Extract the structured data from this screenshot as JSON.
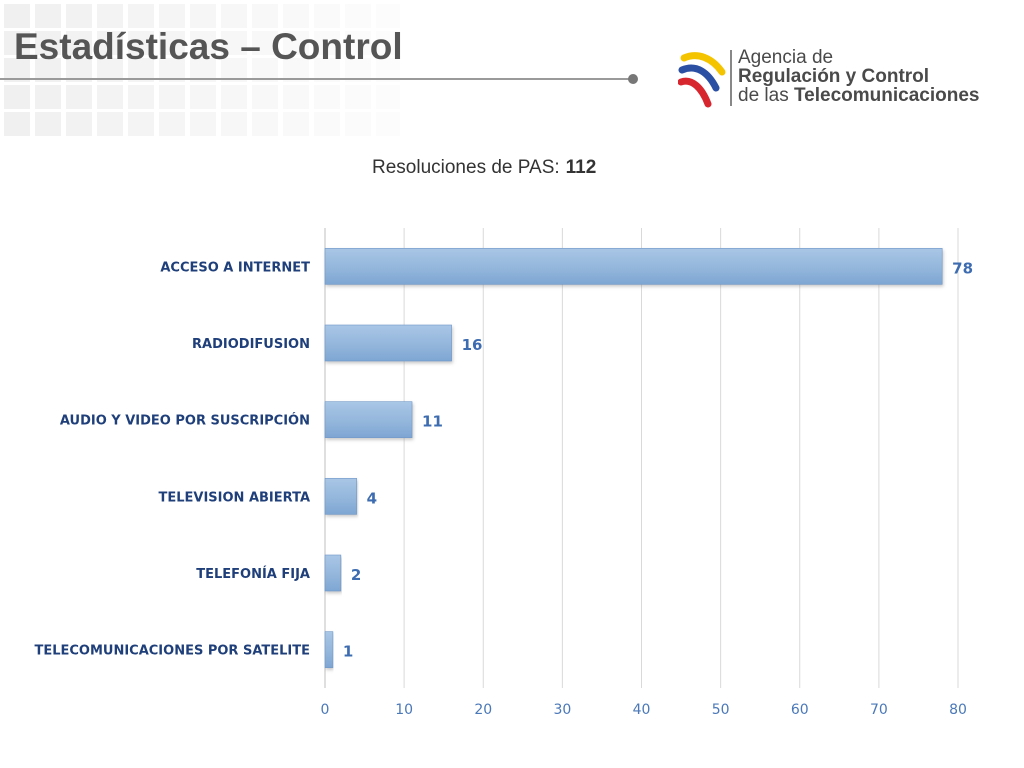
{
  "page": {
    "title": "Estadísticas – Control",
    "summary_label": "Resoluciones de PAS:",
    "summary_value": "112"
  },
  "logo": {
    "line1": "Agencia de",
    "line2": "Regulación y Control",
    "line3_prefix": "de las ",
    "line3_bold": "Telecomunicaciones",
    "colors": [
      "#f5c400",
      "#2b4fa3",
      "#d8262f"
    ]
  },
  "chart_data": {
    "type": "bar",
    "orientation": "horizontal",
    "categories": [
      "ACCESO A INTERNET",
      "RADIODIFUSION",
      "AUDIO Y VIDEO POR SUSCRIPCIÓN",
      "TELEVISION ABIERTA",
      "TELEFONÍA FIJA",
      "TELECOMUNICACIONES POR SATELITE"
    ],
    "values": [
      78,
      16,
      11,
      4,
      2,
      1
    ],
    "xlim": [
      0,
      80
    ],
    "xticks": [
      0,
      10,
      20,
      30,
      40,
      50,
      60,
      70,
      80
    ],
    "grid": true,
    "legend": "none",
    "colors": {
      "bar": "#93b6db",
      "bar_edge": "#6f97c8",
      "category_text": "#1f3f7a",
      "value_text": "#3d6cb0",
      "tick_text": "#4a78b8",
      "grid": "#d9d9d9"
    }
  }
}
